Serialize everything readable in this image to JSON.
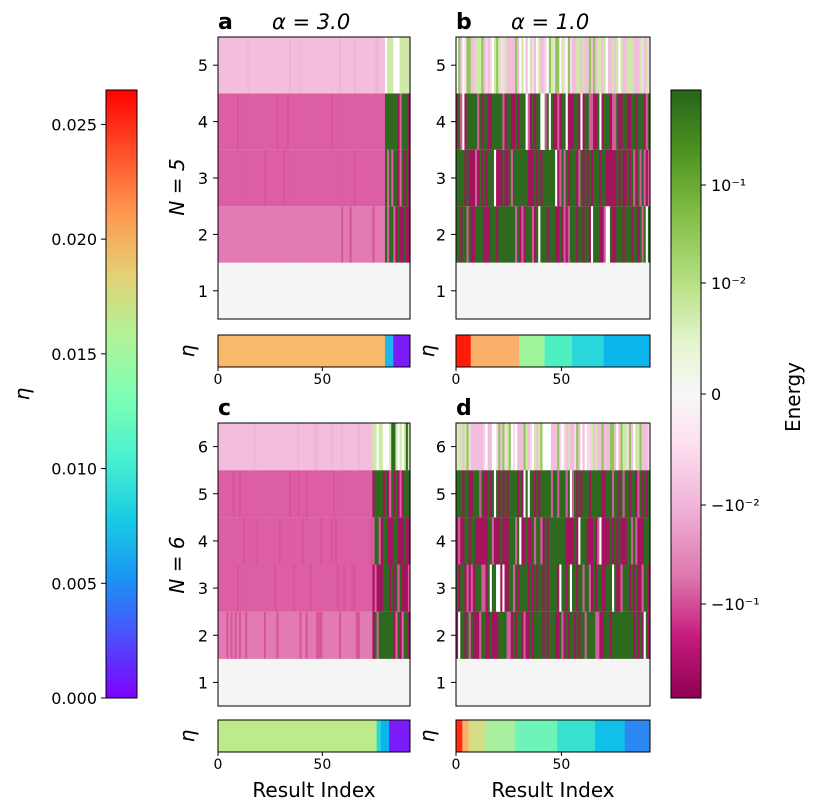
{
  "chart_data": {
    "type": "heatmap",
    "panels": [
      {
        "id": "a",
        "label": "a",
        "title": "α = 3.0",
        "group": "N5",
        "rows": 5,
        "results": 92,
        "variant": "smooth",
        "eta_blocks": [
          [
            0,
            80,
            "#f8b96a"
          ],
          [
            80,
            84,
            "#1bb6ea"
          ],
          [
            84,
            92,
            "#7b1cf8"
          ]
        ]
      },
      {
        "id": "b",
        "label": "b",
        "title": "α = 1.0",
        "group": "N5",
        "rows": 5,
        "results": 92,
        "variant": "mixed",
        "eta_blocks": [
          [
            0,
            7,
            "#ff1a0a"
          ],
          [
            7,
            30,
            "#fab06a"
          ],
          [
            30,
            42,
            "#9ff59a"
          ],
          [
            42,
            55,
            "#4ef0c2"
          ],
          [
            55,
            70,
            "#2ad8dc"
          ],
          [
            70,
            92,
            "#0ab6ec"
          ]
        ]
      },
      {
        "id": "c",
        "label": "c",
        "title": "",
        "group": "N6",
        "rows": 6,
        "results": 92,
        "variant": "smooth",
        "eta_blocks": [
          [
            0,
            76,
            "#bdeb8c"
          ],
          [
            76,
            78,
            "#2ad8d6"
          ],
          [
            78,
            82,
            "#0ab6ec"
          ],
          [
            82,
            92,
            "#7b1cf8"
          ]
        ]
      },
      {
        "id": "d",
        "label": "d",
        "title": "",
        "group": "N6",
        "rows": 6,
        "results": 92,
        "variant": "mixed",
        "eta_blocks": [
          [
            0,
            3,
            "#ff2a10"
          ],
          [
            3,
            6,
            "#fcb06a"
          ],
          [
            6,
            14,
            "#d2dd86"
          ],
          [
            14,
            28,
            "#a8f0a0"
          ],
          [
            28,
            48,
            "#6ef4b8"
          ],
          [
            48,
            66,
            "#38e0d0"
          ],
          [
            66,
            80,
            "#10c0e8"
          ],
          [
            80,
            92,
            "#2a88f0"
          ]
        ]
      }
    ],
    "row_labels_N5": [
      "1",
      "2",
      "3",
      "4",
      "5"
    ],
    "row_labels_N6": [
      "1",
      "2",
      "3",
      "4",
      "5",
      "6"
    ],
    "ylabels": [
      "N = 5",
      "N = 6"
    ],
    "eta_axis_label": "η",
    "eta_xticks": [
      "0",
      "50"
    ],
    "xlabel": "Result Index",
    "eta_colorbar": {
      "label": "η",
      "ticks": [
        "0.025",
        "0.020",
        "0.015",
        "0.010",
        "0.005",
        "0.000"
      ],
      "range": [
        0,
        0.0265
      ]
    },
    "energy_colorbar": {
      "label": "Energy",
      "ticks": [
        "10⁻¹",
        "10⁻²",
        "0",
        "−10⁻²",
        "−10⁻¹"
      ],
      "scale": "symlog"
    }
  },
  "colors": {
    "pink_light": "#f3bede",
    "pink_mid": "#dc5ea3",
    "pink_row2": "#e27ab3",
    "magenta_dark": "#a4145e",
    "green_dark": "#2d6a1f",
    "green_light": "#cfe9a8",
    "neutral": "#f5f5f5"
  }
}
